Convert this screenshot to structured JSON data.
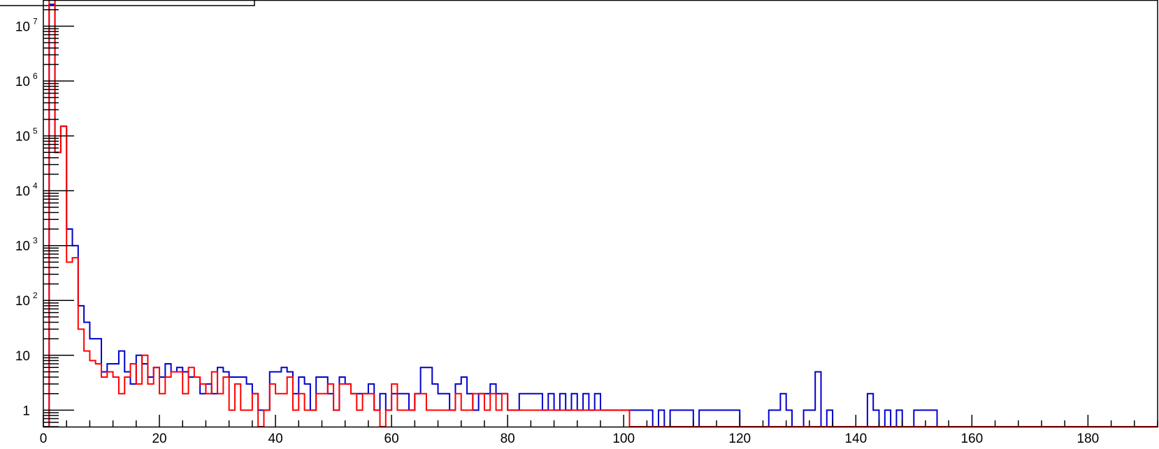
{
  "chart_data": {
    "type": "histogram",
    "title": "",
    "xlabel": "",
    "ylabel": "",
    "y_scale": "log",
    "xlim": [
      0,
      192
    ],
    "ylim": [
      0.5,
      30000000
    ],
    "grid": false,
    "bin_width": 1,
    "x_ticks": [
      "0",
      "20",
      "40",
      "60",
      "80",
      "100",
      "120",
      "140",
      "160",
      "180"
    ],
    "y_ticks": [
      {
        "value": 1,
        "base": "1",
        "exp": ""
      },
      {
        "value": 10,
        "base": "10",
        "exp": ""
      },
      {
        "value": 100,
        "base": "10",
        "exp": "2"
      },
      {
        "value": 1000,
        "base": "10",
        "exp": "3"
      },
      {
        "value": 10000,
        "base": "10",
        "exp": "4"
      },
      {
        "value": 100000,
        "base": "10",
        "exp": "5"
      },
      {
        "value": 1000000,
        "base": "10",
        "exp": "6"
      },
      {
        "value": 10000000,
        "base": "10",
        "exp": "7"
      }
    ],
    "series": [
      {
        "color": "#0000cc",
        "bins": [
          [
            0,
            0
          ],
          [
            1,
            25000000
          ],
          [
            2,
            50000
          ],
          [
            3,
            150000
          ],
          [
            4,
            2000
          ],
          [
            5,
            1000
          ],
          [
            6,
            80
          ],
          [
            7,
            40
          ],
          [
            8,
            20
          ],
          [
            9,
            20
          ],
          [
            10,
            5
          ],
          [
            11,
            7
          ],
          [
            12,
            7
          ],
          [
            13,
            12
          ],
          [
            14,
            5
          ],
          [
            15,
            3
          ],
          [
            16,
            10
          ],
          [
            17,
            7
          ],
          [
            18,
            4
          ],
          [
            19,
            6
          ],
          [
            20,
            4
          ],
          [
            21,
            7
          ],
          [
            22,
            5
          ],
          [
            23,
            6
          ],
          [
            24,
            5
          ],
          [
            25,
            4
          ],
          [
            26,
            4
          ],
          [
            27,
            2
          ],
          [
            28,
            3
          ],
          [
            29,
            2
          ],
          [
            30,
            6
          ],
          [
            31,
            5
          ],
          [
            32,
            4
          ],
          [
            33,
            4
          ],
          [
            34,
            4
          ],
          [
            35,
            3
          ],
          [
            36,
            2
          ],
          [
            37,
            1
          ],
          [
            38,
            1
          ],
          [
            39,
            5
          ],
          [
            40,
            5
          ],
          [
            41,
            6
          ],
          [
            42,
            5
          ],
          [
            43,
            2
          ],
          [
            44,
            4
          ],
          [
            45,
            3
          ],
          [
            46,
            1
          ],
          [
            47,
            4
          ],
          [
            48,
            4
          ],
          [
            49,
            2
          ],
          [
            50,
            1
          ],
          [
            51,
            4
          ],
          [
            52,
            3
          ],
          [
            53,
            2
          ],
          [
            54,
            2
          ],
          [
            55,
            2
          ],
          [
            56,
            3
          ],
          [
            57,
            1
          ],
          [
            58,
            2
          ],
          [
            59,
            1
          ],
          [
            60,
            2
          ],
          [
            61,
            2
          ],
          [
            62,
            2
          ],
          [
            63,
            1
          ],
          [
            64,
            2
          ],
          [
            65,
            6
          ],
          [
            66,
            6
          ],
          [
            67,
            3
          ],
          [
            68,
            2
          ],
          [
            69,
            2
          ],
          [
            70,
            1
          ],
          [
            71,
            3
          ],
          [
            72,
            4
          ],
          [
            73,
            2
          ],
          [
            74,
            1
          ],
          [
            75,
            2
          ],
          [
            76,
            2
          ],
          [
            77,
            3
          ],
          [
            78,
            2
          ],
          [
            79,
            2
          ],
          [
            80,
            1
          ],
          [
            81,
            1
          ],
          [
            82,
            2
          ],
          [
            83,
            2
          ],
          [
            84,
            2
          ],
          [
            85,
            2
          ],
          [
            86,
            1
          ],
          [
            87,
            2
          ],
          [
            88,
            1
          ],
          [
            89,
            2
          ],
          [
            90,
            1
          ],
          [
            91,
            2
          ],
          [
            92,
            1
          ],
          [
            93,
            2
          ],
          [
            94,
            1
          ],
          [
            95,
            2
          ],
          [
            96,
            1
          ],
          [
            97,
            1
          ],
          [
            98,
            1
          ],
          [
            99,
            1
          ],
          [
            100,
            1
          ],
          [
            101,
            1
          ],
          [
            102,
            1
          ],
          [
            103,
            1
          ],
          [
            104,
            1
          ],
          [
            105,
            0
          ],
          [
            106,
            1
          ],
          [
            107,
            0
          ],
          [
            108,
            1
          ],
          [
            109,
            1
          ],
          [
            110,
            1
          ],
          [
            111,
            1
          ],
          [
            112,
            0
          ],
          [
            113,
            1
          ],
          [
            114,
            1
          ],
          [
            115,
            1
          ],
          [
            116,
            1
          ],
          [
            117,
            1
          ],
          [
            118,
            1
          ],
          [
            119,
            1
          ],
          [
            120,
            0
          ],
          [
            121,
            0
          ],
          [
            122,
            0
          ],
          [
            123,
            0
          ],
          [
            124,
            0
          ],
          [
            125,
            1
          ],
          [
            126,
            1
          ],
          [
            127,
            2
          ],
          [
            128,
            1
          ],
          [
            129,
            0
          ],
          [
            130,
            0
          ],
          [
            131,
            1
          ],
          [
            132,
            1
          ],
          [
            133,
            5
          ],
          [
            134,
            0
          ],
          [
            135,
            1
          ],
          [
            136,
            0
          ],
          [
            137,
            0
          ],
          [
            138,
            0
          ],
          [
            139,
            0
          ],
          [
            140,
            0
          ],
          [
            141,
            0
          ],
          [
            142,
            2
          ],
          [
            143,
            1
          ],
          [
            144,
            0
          ],
          [
            145,
            1
          ],
          [
            146,
            0
          ],
          [
            147,
            1
          ],
          [
            148,
            0
          ],
          [
            149,
            0
          ],
          [
            150,
            1
          ],
          [
            151,
            1
          ],
          [
            152,
            1
          ],
          [
            153,
            1
          ],
          [
            154,
            0
          ]
        ]
      },
      {
        "color": "#ff0000",
        "bins": [
          [
            0,
            0
          ],
          [
            1,
            30000000
          ],
          [
            2,
            50000
          ],
          [
            3,
            150000
          ],
          [
            4,
            500
          ],
          [
            5,
            600
          ],
          [
            6,
            30
          ],
          [
            7,
            12
          ],
          [
            8,
            8
          ],
          [
            9,
            7
          ],
          [
            10,
            4
          ],
          [
            11,
            5
          ],
          [
            12,
            4
          ],
          [
            13,
            2
          ],
          [
            14,
            4
          ],
          [
            15,
            7
          ],
          [
            16,
            3
          ],
          [
            17,
            10
          ],
          [
            18,
            3
          ],
          [
            19,
            6
          ],
          [
            20,
            2
          ],
          [
            21,
            4
          ],
          [
            22,
            5
          ],
          [
            23,
            5
          ],
          [
            24,
            2
          ],
          [
            25,
            6
          ],
          [
            26,
            4
          ],
          [
            27,
            3
          ],
          [
            28,
            2
          ],
          [
            29,
            5
          ],
          [
            30,
            2
          ],
          [
            31,
            4
          ],
          [
            32,
            1
          ],
          [
            33,
            3
          ],
          [
            34,
            1
          ],
          [
            35,
            1
          ],
          [
            36,
            2
          ],
          [
            37,
            0
          ],
          [
            38,
            1
          ],
          [
            39,
            3
          ],
          [
            40,
            2
          ],
          [
            41,
            2
          ],
          [
            42,
            4
          ],
          [
            43,
            1
          ],
          [
            44,
            2
          ],
          [
            45,
            1
          ],
          [
            46,
            1
          ],
          [
            47,
            2
          ],
          [
            48,
            2
          ],
          [
            49,
            3
          ],
          [
            50,
            1
          ],
          [
            51,
            3
          ],
          [
            52,
            3
          ],
          [
            53,
            2
          ],
          [
            54,
            1
          ],
          [
            55,
            2
          ],
          [
            56,
            2
          ],
          [
            57,
            1
          ],
          [
            58,
            0
          ],
          [
            59,
            1
          ],
          [
            60,
            3
          ],
          [
            61,
            1
          ],
          [
            62,
            1
          ],
          [
            63,
            1
          ],
          [
            64,
            2
          ],
          [
            65,
            2
          ],
          [
            66,
            1
          ],
          [
            67,
            1
          ],
          [
            68,
            1
          ],
          [
            69,
            1
          ],
          [
            70,
            1
          ],
          [
            71,
            2
          ],
          [
            72,
            1
          ],
          [
            73,
            1
          ],
          [
            74,
            2
          ],
          [
            75,
            2
          ],
          [
            76,
            1
          ],
          [
            77,
            2
          ],
          [
            78,
            1
          ],
          [
            79,
            2
          ],
          [
            80,
            1
          ],
          [
            81,
            1
          ],
          [
            82,
            1
          ],
          [
            83,
            1
          ],
          [
            84,
            1
          ],
          [
            85,
            1
          ],
          [
            86,
            1
          ],
          [
            87,
            1
          ],
          [
            88,
            1
          ],
          [
            89,
            1
          ],
          [
            90,
            1
          ],
          [
            91,
            1
          ],
          [
            92,
            1
          ],
          [
            93,
            1
          ],
          [
            94,
            1
          ],
          [
            95,
            1
          ],
          [
            96,
            1
          ],
          [
            97,
            1
          ],
          [
            98,
            1
          ],
          [
            99,
            1
          ],
          [
            100,
            1
          ],
          [
            101,
            0
          ]
        ]
      }
    ]
  }
}
